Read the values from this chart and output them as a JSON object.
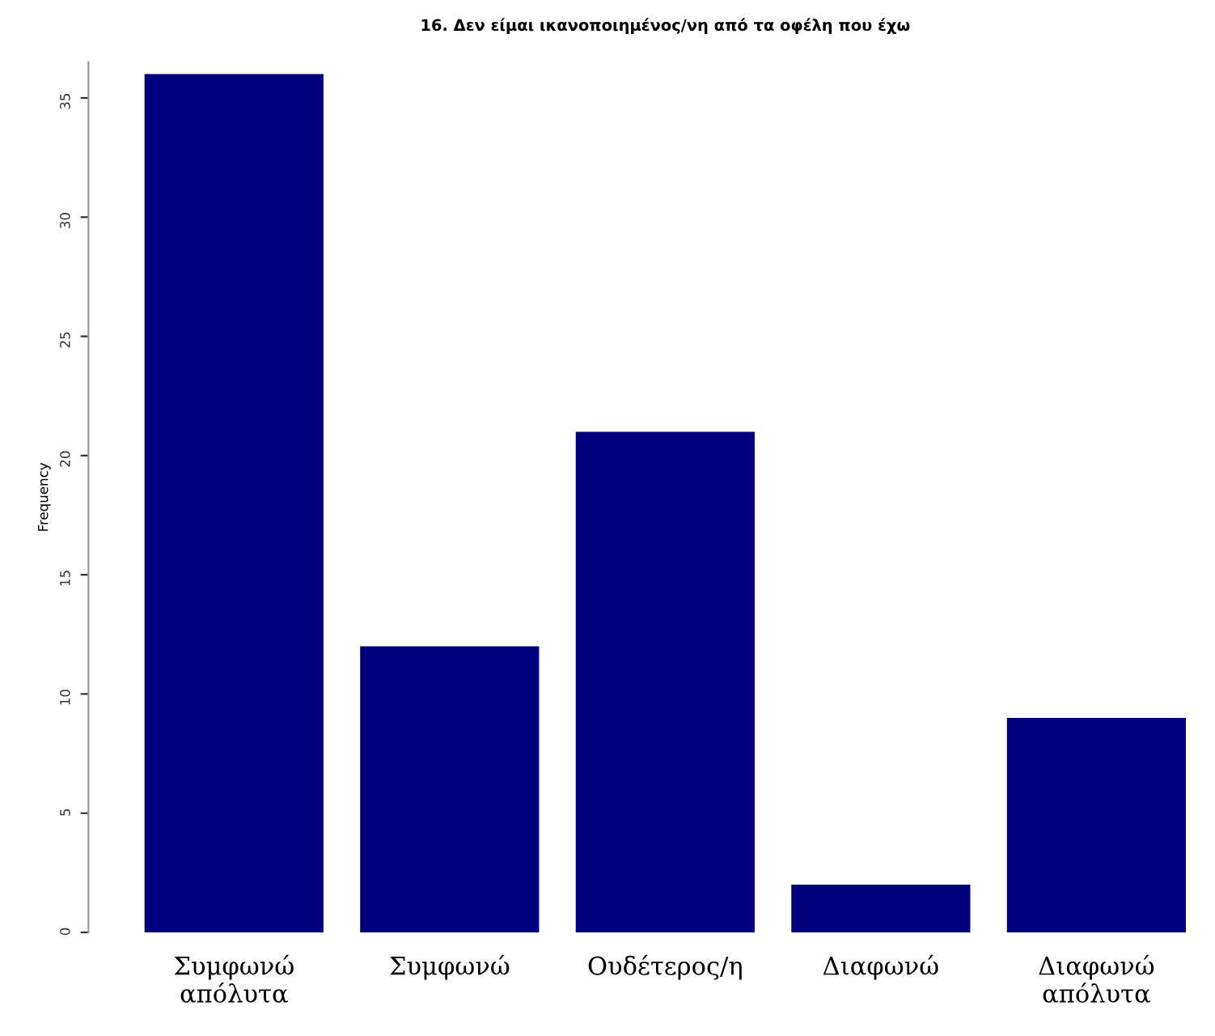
{
  "chart_data": {
    "type": "bar",
    "title": "16. Δεν είμαι ικανοποιημένος/νη από τα οφέλη που έχω",
    "ylabel": "Frequency",
    "categories": [
      "Συμφωνώ\nαπόλυτα",
      "Συμφωνώ",
      "Ουδέτερος/η",
      "Διαφωνώ",
      "Διαφωνώ\nαπόλυτα"
    ],
    "values": [
      36,
      12,
      21,
      2,
      9
    ],
    "color": "#00007f",
    "ylim": [
      0,
      36.5
    ],
    "yticks": [
      0,
      5,
      10,
      15,
      20,
      25,
      30,
      35
    ],
    "grid": false
  }
}
